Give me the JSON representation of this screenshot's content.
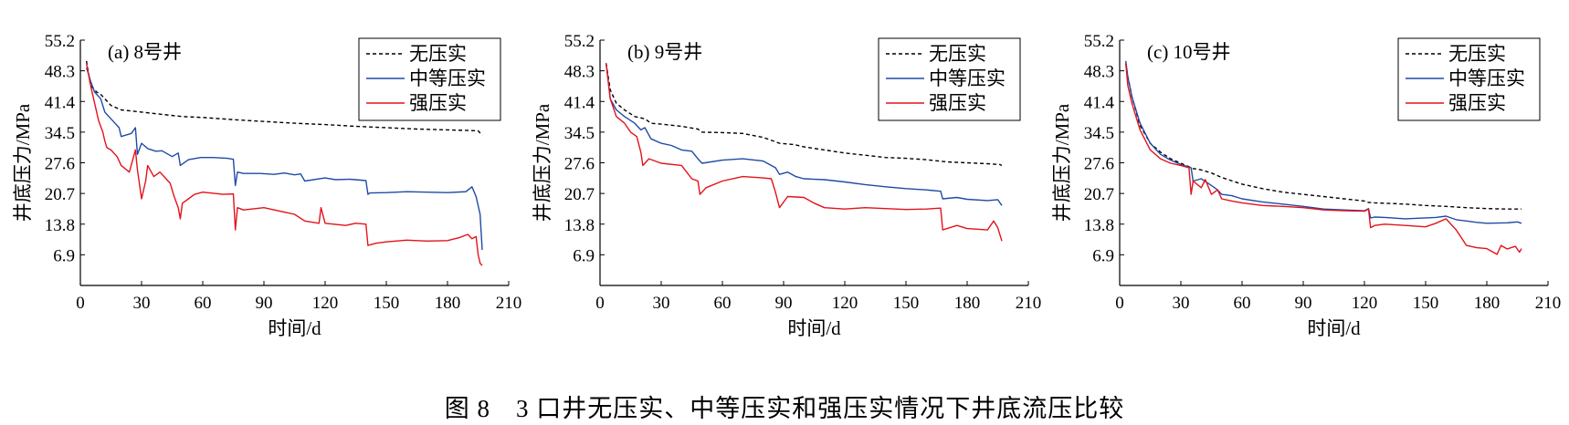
{
  "caption": "图 8　3 口井无压实、中等压实和强压实情况下井底流压比较",
  "colors": {
    "none": "#000000",
    "medium": "#1f4aa6",
    "strong": "#e3121b"
  },
  "chart_data": [
    {
      "type": "line",
      "title": "(a) 8号井",
      "xlabel": "时间/d",
      "ylabel": "井底压力/MPa",
      "xlim": [
        0,
        210
      ],
      "ylim": [
        0,
        55.2
      ],
      "xticks": [
        0,
        30,
        60,
        90,
        120,
        150,
        180,
        210
      ],
      "yticks": [
        6.9,
        13.8,
        20.7,
        27.6,
        34.5,
        41.4,
        48.3,
        55.2
      ],
      "legend_position": "top-right",
      "series": [
        {
          "name": "无压实",
          "style": "dashed",
          "color": "#000000",
          "x": [
            3,
            5,
            8,
            10,
            15,
            20,
            30,
            40,
            50,
            60,
            75,
            90,
            105,
            120,
            135,
            150,
            165,
            180,
            195,
            197
          ],
          "y": [
            50.5,
            45.0,
            43.5,
            43.0,
            40.5,
            39.5,
            39.0,
            38.5,
            38.0,
            37.8,
            37.3,
            36.9,
            36.5,
            36.2,
            35.8,
            35.5,
            35.2,
            35.0,
            34.8,
            33.8
          ]
        },
        {
          "name": "中等压实",
          "style": "solid",
          "color": "#1f4aa6",
          "x": [
            3,
            5,
            7,
            10,
            12,
            13,
            15,
            19,
            20,
            25,
            27,
            28,
            30,
            33,
            37,
            40,
            45,
            48,
            49,
            53,
            59,
            65,
            72,
            75,
            76,
            77,
            80,
            88,
            95,
            100,
            105,
            108,
            110,
            120,
            125,
            132,
            140,
            141,
            142,
            150,
            160,
            170,
            180,
            189,
            192,
            194,
            196,
            197
          ],
          "y": [
            49.0,
            46.0,
            43.5,
            42.0,
            39.0,
            38.5,
            37.5,
            35.5,
            33.5,
            34.2,
            35.5,
            29.5,
            32.0,
            30.8,
            30.2,
            30.3,
            29.0,
            29.8,
            27.0,
            28.3,
            28.8,
            28.8,
            28.6,
            28.4,
            22.5,
            25.5,
            25.2,
            25.2,
            25.0,
            25.3,
            24.9,
            25.1,
            23.5,
            24.2,
            23.8,
            23.9,
            23.6,
            20.5,
            20.8,
            20.9,
            21.1,
            21.0,
            20.9,
            21.1,
            22.2,
            20.0,
            16.0,
            8.0
          ]
        },
        {
          "name": "强压实",
          "style": "solid",
          "color": "#e3121b",
          "x": [
            3,
            5,
            7,
            9,
            11,
            12,
            13,
            15,
            18,
            20,
            24,
            27,
            28,
            30,
            32,
            33,
            36,
            39,
            44,
            46,
            48,
            49,
            50,
            53,
            56,
            60,
            70,
            75,
            76,
            77,
            80,
            90,
            100,
            105,
            110,
            117,
            118,
            120,
            130,
            135,
            140,
            141,
            145,
            150,
            160,
            170,
            180,
            186,
            190,
            192,
            194,
            195,
            196,
            197
          ],
          "y": [
            50.0,
            45.0,
            41.0,
            37.0,
            34.5,
            32.5,
            31.0,
            30.5,
            29.0,
            27.0,
            25.5,
            30.5,
            26.0,
            19.5,
            23.5,
            27.0,
            24.5,
            25.5,
            23.0,
            20.0,
            17.5,
            15.0,
            18.5,
            19.5,
            20.5,
            21.0,
            20.5,
            20.6,
            12.5,
            17.5,
            17.0,
            17.5,
            16.5,
            16.0,
            14.5,
            14.0,
            17.5,
            14.0,
            13.5,
            14.0,
            13.8,
            9.0,
            9.5,
            9.8,
            10.2,
            10.0,
            10.1,
            10.8,
            11.5,
            10.5,
            11.0,
            7.0,
            5.0,
            4.5
          ]
        }
      ]
    },
    {
      "type": "line",
      "title": "(b) 9号井",
      "xlabel": "时间/d",
      "ylabel": "井底压力/MPa",
      "xlim": [
        0,
        210
      ],
      "ylim": [
        0,
        55.2
      ],
      "xticks": [
        0,
        30,
        60,
        90,
        120,
        150,
        180,
        210
      ],
      "yticks": [
        6.9,
        13.8,
        20.7,
        27.6,
        34.5,
        41.4,
        48.3,
        55.2
      ],
      "legend_position": "top-right",
      "series": [
        {
          "name": "无压实",
          "style": "dashed",
          "color": "#000000",
          "x": [
            3,
            5,
            8,
            12,
            17,
            22,
            25,
            30,
            40,
            48,
            50,
            60,
            70,
            80,
            85,
            88,
            95,
            100,
            110,
            120,
            130,
            140,
            150,
            160,
            170,
            180,
            190,
            196,
            197
          ],
          "y": [
            50.0,
            44.0,
            41.0,
            39.5,
            38.0,
            37.5,
            36.5,
            36.3,
            35.8,
            35.2,
            34.5,
            34.4,
            34.2,
            33.3,
            32.5,
            32.0,
            31.7,
            31.2,
            30.5,
            29.8,
            29.3,
            28.8,
            28.6,
            28.3,
            27.8,
            27.6,
            27.4,
            27.2,
            27.0
          ]
        },
        {
          "name": "中等压实",
          "style": "solid",
          "color": "#1f4aa6",
          "x": [
            3,
            5,
            8,
            12,
            17,
            20,
            22,
            25,
            30,
            35,
            40,
            45,
            48,
            50,
            60,
            70,
            80,
            86,
            88,
            92,
            96,
            100,
            110,
            120,
            130,
            140,
            150,
            160,
            167,
            168,
            175,
            180,
            190,
            195,
            197
          ],
          "y": [
            50.0,
            42.0,
            39.5,
            38.0,
            36.5,
            35.0,
            35.5,
            33.0,
            32.0,
            31.5,
            30.5,
            30.2,
            28.5,
            27.5,
            28.2,
            28.5,
            28.0,
            26.5,
            25.0,
            25.5,
            24.5,
            24.0,
            23.8,
            23.3,
            22.7,
            22.2,
            21.8,
            21.5,
            21.2,
            19.5,
            19.8,
            19.4,
            19.1,
            19.3,
            18.0
          ]
        },
        {
          "name": "强压实",
          "style": "solid",
          "color": "#e3121b",
          "x": [
            3,
            5,
            8,
            12,
            15,
            18,
            20,
            21,
            24,
            30,
            40,
            45,
            48,
            49,
            52,
            60,
            70,
            80,
            84,
            86,
            88,
            92,
            100,
            105,
            110,
            120,
            130,
            140,
            150,
            160,
            167,
            168,
            175,
            180,
            190,
            193,
            195,
            197
          ],
          "y": [
            50.0,
            42.0,
            38.0,
            36.5,
            34.5,
            33.5,
            30.0,
            27.0,
            28.5,
            27.5,
            27.0,
            24.0,
            23.5,
            20.5,
            22.0,
            23.5,
            24.5,
            24.2,
            24.0,
            21.0,
            17.5,
            20.0,
            19.8,
            18.5,
            17.5,
            17.2,
            17.5,
            17.3,
            17.1,
            17.2,
            17.4,
            12.5,
            13.5,
            12.8,
            12.5,
            14.5,
            13.0,
            10.0
          ]
        }
      ]
    },
    {
      "type": "line",
      "title": "(c) 10号井",
      "xlabel": "时间/d",
      "ylabel": "井底压力/MPa",
      "xlim": [
        0,
        210
      ],
      "ylim": [
        0,
        55.2
      ],
      "xticks": [
        0,
        30,
        60,
        90,
        120,
        150,
        180,
        210
      ],
      "yticks": [
        6.9,
        13.8,
        20.7,
        27.6,
        34.5,
        41.4,
        48.3,
        55.2
      ],
      "legend_position": "top-right",
      "series": [
        {
          "name": "无压实",
          "style": "dashed",
          "color": "#000000",
          "x": [
            3,
            4,
            6,
            10,
            15,
            20,
            25,
            30,
            35,
            36,
            40,
            45,
            50,
            60,
            70,
            80,
            90,
            100,
            110,
            120,
            122,
            125,
            130,
            140,
            150,
            160,
            170,
            180,
            190,
            197
          ],
          "y": [
            50.0,
            47.0,
            42.5,
            36.0,
            32.0,
            30.0,
            28.5,
            27.5,
            26.5,
            26.3,
            26.0,
            25.3,
            24.3,
            22.8,
            21.8,
            21.0,
            20.5,
            20.0,
            19.5,
            19.0,
            18.7,
            18.6,
            18.5,
            18.3,
            18.0,
            17.8,
            17.5,
            17.3,
            17.2,
            17.2
          ]
        },
        {
          "name": "中等压实",
          "style": "solid",
          "color": "#1f4aa6",
          "x": [
            3,
            4,
            6,
            10,
            15,
            20,
            25,
            30,
            35,
            36,
            40,
            45,
            48,
            50,
            55,
            60,
            70,
            80,
            90,
            100,
            110,
            120,
            122,
            123,
            125,
            130,
            140,
            150,
            155,
            160,
            165,
            170,
            175,
            180,
            190,
            195,
            197
          ],
          "y": [
            50.5,
            47.0,
            42.5,
            36.5,
            32.0,
            29.5,
            28.2,
            27.2,
            26.5,
            23.5,
            24.0,
            22.5,
            21.5,
            20.5,
            20.2,
            19.5,
            18.8,
            18.3,
            17.8,
            17.2,
            17.0,
            16.8,
            17.3,
            15.2,
            15.4,
            15.3,
            15.0,
            15.2,
            15.3,
            15.6,
            14.8,
            14.5,
            14.2,
            14.0,
            14.1,
            14.3,
            14.0
          ]
        },
        {
          "name": "强压实",
          "style": "solid",
          "color": "#e3121b",
          "x": [
            3,
            4,
            6,
            10,
            15,
            20,
            25,
            30,
            34,
            35,
            36,
            40,
            42,
            45,
            48,
            50,
            55,
            60,
            70,
            80,
            90,
            100,
            110,
            120,
            122,
            123,
            125,
            130,
            140,
            150,
            155,
            160,
            165,
            170,
            175,
            180,
            185,
            187,
            190,
            194,
            196,
            197
          ],
          "y": [
            50.0,
            45.0,
            41.0,
            35.0,
            30.5,
            28.5,
            27.5,
            27.0,
            26.5,
            20.5,
            23.5,
            22.0,
            23.8,
            20.5,
            21.5,
            19.5,
            19.0,
            18.6,
            18.0,
            17.8,
            17.5,
            17.0,
            16.8,
            16.7,
            17.2,
            13.0,
            13.5,
            13.8,
            13.5,
            13.2,
            14.0,
            15.0,
            12.5,
            9.0,
            8.5,
            8.3,
            7.0,
            9.0,
            8.2,
            8.8,
            7.5,
            8.3
          ]
        }
      ]
    }
  ]
}
